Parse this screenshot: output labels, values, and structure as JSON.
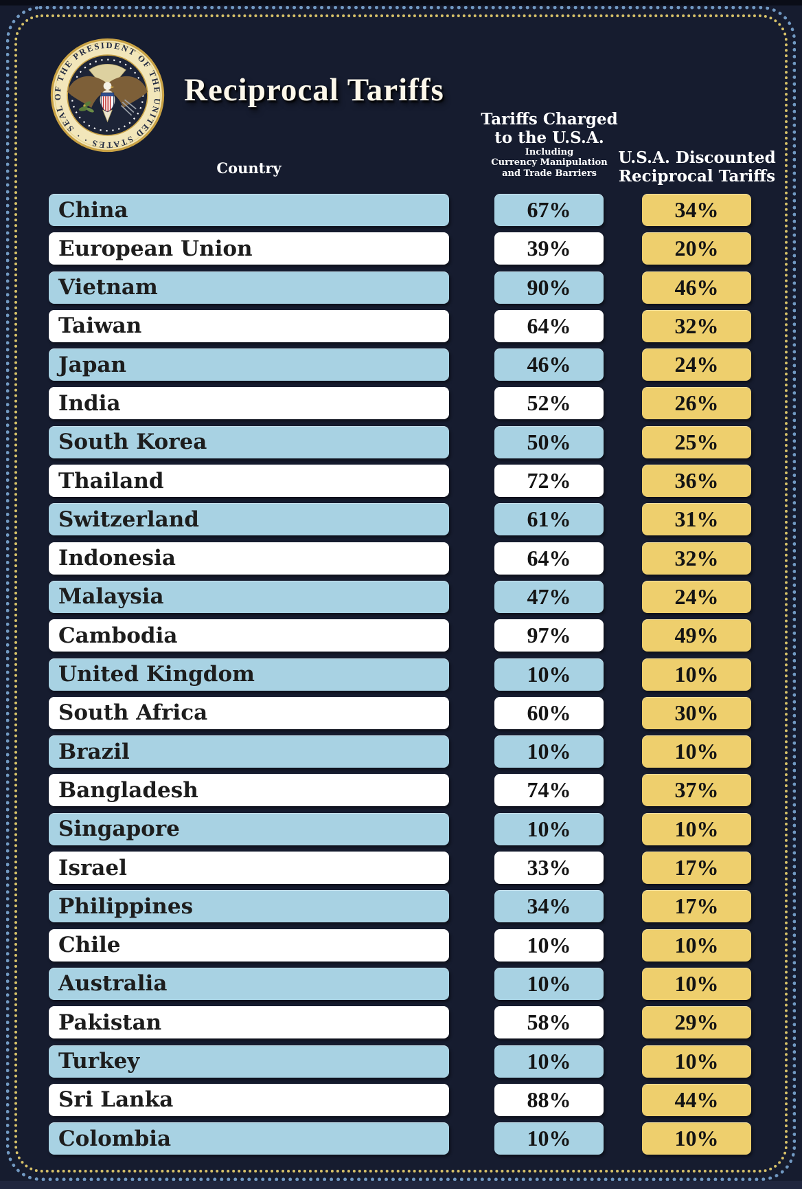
{
  "title": "Reciprocal Tariffs",
  "seal": {
    "alt": "seal-of-the-president-of-the-united-states",
    "ring_text": "SEAL OF THE PRESIDENT OF THE UNITED STATES · ·"
  },
  "columns": {
    "country": "Country",
    "charged_line1": "Tariffs Charged",
    "charged_line2": "to the U.S.A.",
    "charged_sub1": "Including",
    "charged_sub2": "Currency Manipulation",
    "charged_sub3": "and Trade Barriers",
    "discounted_line1": "U.S.A. Discounted",
    "discounted_line2": "Reciprocal Tariffs"
  },
  "rows": [
    {
      "country": "China",
      "charged": "67%",
      "discounted": "34%"
    },
    {
      "country": "European Union",
      "charged": "39%",
      "discounted": "20%"
    },
    {
      "country": "Vietnam",
      "charged": "90%",
      "discounted": "46%"
    },
    {
      "country": "Taiwan",
      "charged": "64%",
      "discounted": "32%"
    },
    {
      "country": "Japan",
      "charged": "46%",
      "discounted": "24%"
    },
    {
      "country": "India",
      "charged": "52%",
      "discounted": "26%"
    },
    {
      "country": "South Korea",
      "charged": "50%",
      "discounted": "25%"
    },
    {
      "country": "Thailand",
      "charged": "72%",
      "discounted": "36%"
    },
    {
      "country": "Switzerland",
      "charged": "61%",
      "discounted": "31%"
    },
    {
      "country": "Indonesia",
      "charged": "64%",
      "discounted": "32%"
    },
    {
      "country": "Malaysia",
      "charged": "47%",
      "discounted": "24%"
    },
    {
      "country": "Cambodia",
      "charged": "97%",
      "discounted": "49%"
    },
    {
      "country": "United Kingdom",
      "charged": "10%",
      "discounted": "10%"
    },
    {
      "country": "South Africa",
      "charged": "60%",
      "discounted": "30%"
    },
    {
      "country": "Brazil",
      "charged": "10%",
      "discounted": "10%"
    },
    {
      "country": "Bangladesh",
      "charged": "74%",
      "discounted": "37%"
    },
    {
      "country": "Singapore",
      "charged": "10%",
      "discounted": "10%"
    },
    {
      "country": "Israel",
      "charged": "33%",
      "discounted": "17%"
    },
    {
      "country": "Philippines",
      "charged": "34%",
      "discounted": "17%"
    },
    {
      "country": "Chile",
      "charged": "10%",
      "discounted": "10%"
    },
    {
      "country": "Australia",
      "charged": "10%",
      "discounted": "10%"
    },
    {
      "country": "Pakistan",
      "charged": "58%",
      "discounted": "29%"
    },
    {
      "country": "Turkey",
      "charged": "10%",
      "discounted": "10%"
    },
    {
      "country": "Sri Lanka",
      "charged": "88%",
      "discounted": "44%"
    },
    {
      "country": "Colombia",
      "charged": "10%",
      "discounted": "10%"
    }
  ],
  "colors": {
    "background": "#161c2f",
    "row_blue": "#a8d2e3",
    "row_white": "#ffffff",
    "accent_yellow": "#eecf6d",
    "border_blue_dots": "#7199c2",
    "border_gold_dots": "#d8c269"
  },
  "chart_data": {
    "type": "table",
    "title": "Reciprocal Tariffs",
    "columns": [
      "Country",
      "Tariffs Charged to the U.S.A. Including Currency Manipulation and Trade Barriers",
      "U.S.A. Discounted Reciprocal Tariffs"
    ],
    "categories": [
      "China",
      "European Union",
      "Vietnam",
      "Taiwan",
      "Japan",
      "India",
      "South Korea",
      "Thailand",
      "Switzerland",
      "Indonesia",
      "Malaysia",
      "Cambodia",
      "United Kingdom",
      "South Africa",
      "Brazil",
      "Bangladesh",
      "Singapore",
      "Israel",
      "Philippines",
      "Chile",
      "Australia",
      "Pakistan",
      "Turkey",
      "Sri Lanka",
      "Colombia"
    ],
    "series": [
      {
        "name": "Tariffs Charged to the U.S.A. (%)",
        "values": [
          67,
          39,
          90,
          64,
          46,
          52,
          50,
          72,
          61,
          64,
          47,
          97,
          10,
          60,
          10,
          74,
          10,
          33,
          34,
          10,
          10,
          58,
          10,
          88,
          10
        ]
      },
      {
        "name": "U.S.A. Discounted Reciprocal Tariffs (%)",
        "values": [
          34,
          20,
          46,
          32,
          24,
          26,
          25,
          36,
          31,
          32,
          24,
          49,
          10,
          30,
          10,
          37,
          10,
          17,
          17,
          10,
          10,
          29,
          10,
          44,
          10
        ]
      }
    ]
  }
}
